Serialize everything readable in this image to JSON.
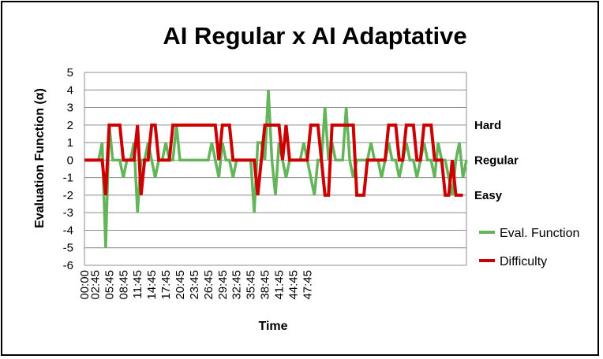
{
  "chart_data": {
    "type": "line",
    "title": "AI Regular x AI Adaptative",
    "xlabel": "Time",
    "ylabel": "Evaluation Function (α)",
    "ylim": [
      -6,
      5
    ],
    "yticks": [
      5,
      4,
      3,
      2,
      1,
      0,
      -1,
      -2,
      -3,
      -4,
      -5,
      -6
    ],
    "xtick_labels": [
      "00:00",
      "02:45",
      "05:45",
      "08:45",
      "11:45",
      "14:45",
      "17:45",
      "20:45",
      "23:45",
      "26:45",
      "29:45",
      "32:45",
      "35:45",
      "38:45",
      "41:45",
      "44:45",
      "47:45"
    ],
    "x_interval_seconds": 45,
    "grid": true,
    "legend_position": "right",
    "difficulty_levels": [
      {
        "label": "Hard",
        "value": 2
      },
      {
        "label": "Regular",
        "value": 0
      },
      {
        "label": "Easy",
        "value": -2
      }
    ],
    "series": [
      {
        "name": "Eval. Function",
        "color": "#64b45a",
        "values": [
          0,
          0,
          0,
          0,
          0,
          1,
          -5,
          2,
          0,
          0,
          0,
          -1,
          0,
          0,
          1,
          -3,
          0,
          0,
          1,
          0,
          -1,
          0,
          0,
          1,
          0,
          0,
          2,
          0,
          0,
          0,
          0,
          0,
          0,
          0,
          0,
          0,
          1,
          0,
          -1,
          1,
          0,
          0,
          -1,
          0,
          0,
          0,
          0,
          0,
          -3,
          1,
          1,
          0,
          4,
          0,
          -2,
          1,
          0,
          -1,
          0,
          0,
          0,
          0,
          1,
          0,
          -1,
          -2,
          0,
          0,
          3,
          0,
          1,
          0,
          0,
          0,
          3,
          0,
          -1,
          0,
          0,
          0,
          0,
          1,
          0,
          0,
          -1,
          0,
          1,
          0,
          0,
          -1,
          0,
          1,
          0,
          0,
          -1,
          0,
          1,
          0,
          0,
          -1,
          1,
          0,
          0,
          -1,
          -2,
          0,
          1,
          -1,
          0
        ]
      },
      {
        "name": "Difficulty",
        "color": "#cc0000",
        "values": [
          0,
          0,
          0,
          0,
          0,
          0,
          -2,
          2,
          2,
          2,
          2,
          0,
          0,
          0,
          0,
          2,
          -2,
          0,
          0,
          2,
          2,
          0,
          0,
          0,
          0,
          2,
          2,
          2,
          2,
          2,
          2,
          2,
          2,
          2,
          2,
          2,
          2,
          2,
          0,
          2,
          2,
          2,
          0,
          0,
          0,
          0,
          0,
          0,
          0,
          -2,
          0,
          2,
          2,
          2,
          2,
          2,
          0,
          2,
          0,
          0,
          0,
          0,
          0,
          0,
          2,
          2,
          2,
          0,
          -2,
          -2,
          2,
          2,
          2,
          2,
          2,
          2,
          2,
          -2,
          -2,
          -2,
          0,
          0,
          0,
          0,
          0,
          0,
          2,
          2,
          2,
          0,
          0,
          2,
          2,
          2,
          0,
          0,
          2,
          2,
          2,
          0,
          0,
          0,
          -2,
          -2,
          0,
          -2,
          -2,
          -2
        ]
      }
    ]
  }
}
